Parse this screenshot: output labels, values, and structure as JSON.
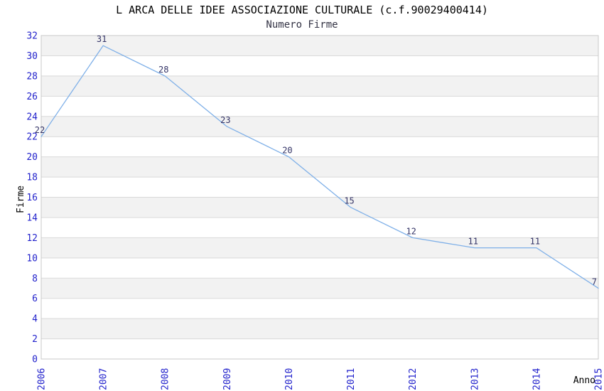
{
  "chart_data": {
    "type": "line",
    "title": "L ARCA DELLE IDEE ASSOCIAZIONE CULTURALE (c.f.90029400414)",
    "subtitle": "Numero Firme",
    "xlabel": "Anno",
    "ylabel": "Firme",
    "x": [
      "2006",
      "2007",
      "2008",
      "2009",
      "2010",
      "2011",
      "2012",
      "2013",
      "2014",
      "2015"
    ],
    "series": [
      {
        "name": "Numero Firme",
        "values": [
          22,
          31,
          28,
          23,
          20,
          15,
          12,
          11,
          11,
          7
        ]
      }
    ],
    "ylim": [
      0,
      32
    ],
    "ytick_step": 2,
    "grid": "horizontal-lines-with-alternating-bands",
    "legend": "none",
    "point_labels_visible": true,
    "x_tick_rotation_degrees": -90,
    "colors": {
      "line": "#7fb0e8",
      "tick_label": "#2222cc",
      "point_label": "#333366",
      "band": "#f2f2f2",
      "grid": "#d9d9d9",
      "border": "#c9c9c9",
      "title": "#000000",
      "subtitle": "#333344",
      "axis_title": "#000000",
      "background": "#ffffff"
    }
  }
}
